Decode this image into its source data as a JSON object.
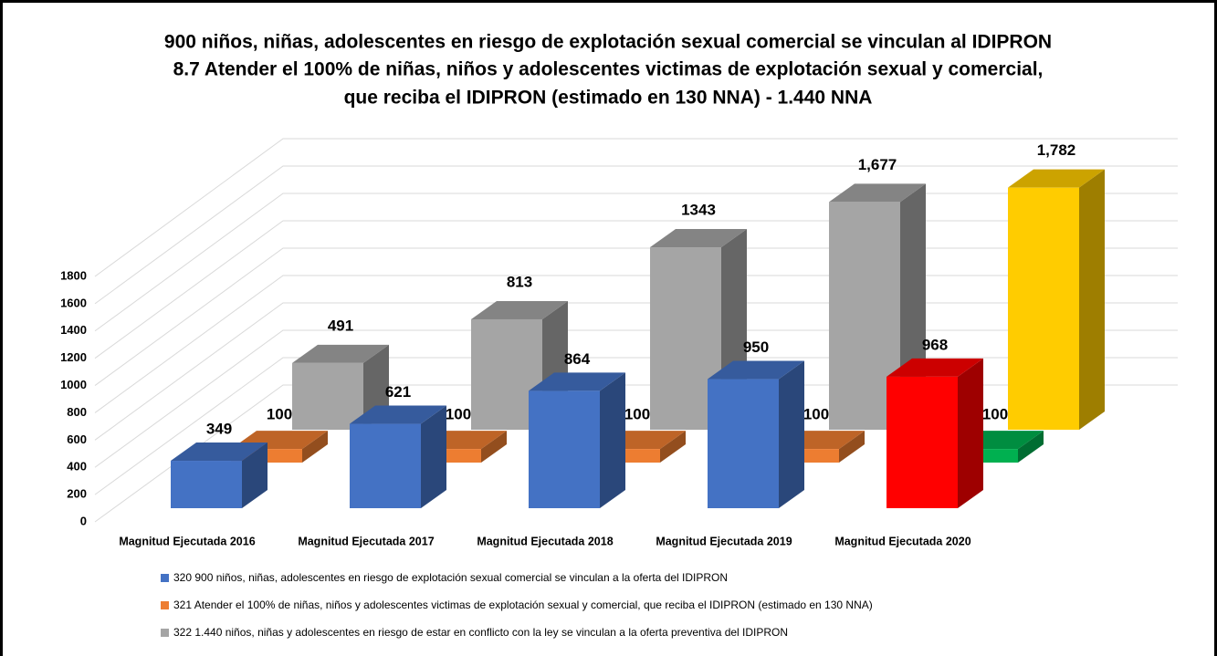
{
  "chart_data": {
    "type": "bar3d",
    "title": [
      "900 niños, niñas, adolescentes en riesgo de explotación sexual comercial se vinculan al IDIPRON",
      "8.7 Atender el 100% de niñas, niños y adolescentes victimas de explotación sexual y comercial,",
      "que reciba el IDIPRON (estimado en 130 NNA)  - 1.440 NNA"
    ],
    "categories": [
      "Magnitud Ejecutada 2016",
      "Magnitud Ejecutada 2017",
      "Magnitud Ejecutada 2018",
      "Magnitud Ejecutada 2019",
      "Magnitud Ejecutada 2020"
    ],
    "series": [
      {
        "name": "320 900 niños, niñas, adolescentes en riesgo de explotación sexual comercial se vinculan a la oferta del IDIPRON",
        "color": "#4472c4",
        "colors": [
          "#4472c4",
          "#4472c4",
          "#4472c4",
          "#4472c4",
          "#ff0000"
        ],
        "values": [
          349,
          621,
          864,
          950,
          968
        ]
      },
      {
        "name": "321 Atender el 100% de niñas, niños y adolescentes victimas de explotación sexual y comercial, que reciba el IDIPRON (estimado en 130 NNA)",
        "color": "#ed7d31",
        "colors": [
          "#ed7d31",
          "#ed7d31",
          "#ed7d31",
          "#ed7d31",
          "#00b050"
        ],
        "values": [
          100,
          100,
          100,
          100,
          100
        ]
      },
      {
        "name": "322 1.440 niños, niñas y adolescentes en riesgo de estar en conflicto con la ley se vinculan a la oferta preventiva del IDIPRON",
        "color": "#a5a5a5",
        "colors": [
          "#a5a5a5",
          "#a5a5a5",
          "#a5a5a5",
          "#a5a5a5",
          "#ffcc00"
        ],
        "values": [
          491,
          813,
          1343,
          1677,
          1782
        ],
        "value_labels": [
          "491",
          "813",
          "1343",
          "1,677",
          "1,782"
        ]
      }
    ],
    "ylim": [
      0,
      1800
    ],
    "yticks": [
      0,
      200,
      400,
      600,
      800,
      1000,
      1200,
      1400,
      1600,
      1800
    ],
    "grid": true
  }
}
